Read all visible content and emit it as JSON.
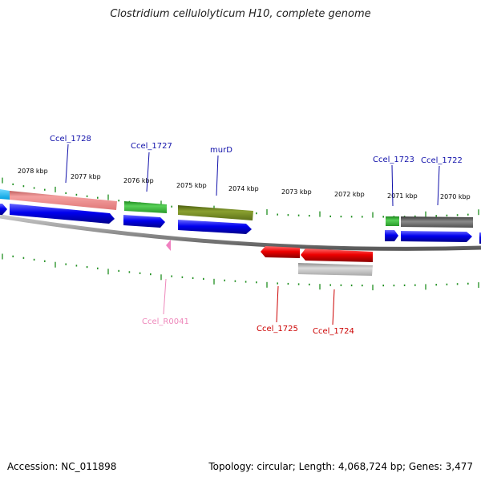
{
  "title": "Clostridium cellulolyticum H10, complete genome",
  "footer": {
    "accession": "Accession: NC_011898",
    "summary": "Topology: circular; Length: 4,068,724 bp; Genes: 3,477"
  },
  "scale_labels": [
    "2078 kbp",
    "2077 kbp",
    "2076 kbp",
    "2075 kbp",
    "2074 kbp",
    "2073 kbp",
    "2072 kbp",
    "2071 kbp",
    "2070 kbp"
  ],
  "gene_labels": [
    {
      "name": "Ccel_1728",
      "color": "#1010aa"
    },
    {
      "name": "Ccel_1727",
      "color": "#1010aa"
    },
    {
      "name": "murD",
      "color": "#1010aa"
    },
    {
      "name": "Ccel_1723",
      "color": "#1010aa"
    },
    {
      "name": "Ccel_1722",
      "color": "#1010aa"
    },
    {
      "name": "Ccel_R0041",
      "color": "#ee88bb"
    },
    {
      "name": "Ccel_1725",
      "color": "#cc0000"
    },
    {
      "name": "Ccel_1724",
      "color": "#cc0000"
    }
  ],
  "colors": {
    "forward_cds": "#0000ee",
    "reverse_cds": "#ee0000",
    "backbone": "#888888",
    "tick": "#1f8f1f"
  }
}
